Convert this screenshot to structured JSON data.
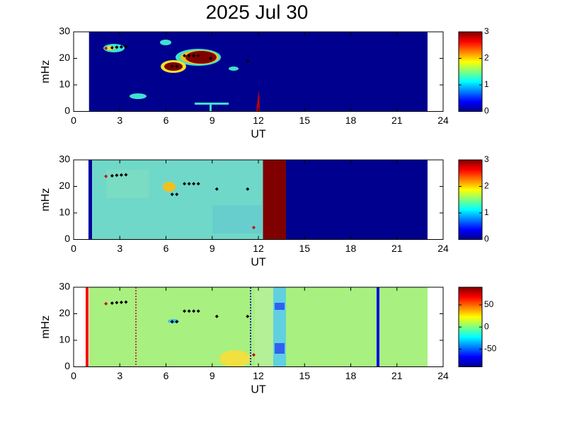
{
  "title": "2025 Jul 30",
  "chart_data": [
    {
      "type": "heatmap",
      "xlabel": "UT",
      "ylabel": "mHz",
      "xlim": [
        0,
        24
      ],
      "ylim": [
        0,
        30
      ],
      "xticks": [
        0,
        3,
        6,
        9,
        12,
        15,
        18,
        21,
        24
      ],
      "yticks": [
        0,
        10,
        20,
        30
      ],
      "clim": [
        0,
        3
      ],
      "cticks": [
        0,
        1,
        2,
        3
      ],
      "series": [
        {
          "color": "#000000",
          "x": [
            2.5,
            2.8,
            3.1,
            3.4,
            6.4,
            6.7,
            7.2,
            7.5,
            7.8,
            8.1,
            8.9,
            11.3
          ],
          "y": [
            24,
            24.2,
            24.3,
            24.4,
            17,
            17,
            21,
            21,
            21,
            21,
            20,
            19
          ]
        },
        {
          "color": "#d00000",
          "x": [
            2.1
          ],
          "y": [
            23.8
          ]
        }
      ]
    },
    {
      "type": "heatmap",
      "xlabel": "UT",
      "ylabel": "mHz",
      "xlim": [
        0,
        24
      ],
      "ylim": [
        0,
        30
      ],
      "xticks": [
        0,
        3,
        6,
        9,
        12,
        15,
        18,
        21,
        24
      ],
      "yticks": [
        0,
        10,
        20,
        30
      ],
      "clim": [
        0,
        3
      ],
      "cticks": [
        0,
        1,
        2,
        3
      ],
      "series": [
        {
          "color": "#000000",
          "x": [
            2.5,
            2.8,
            3.1,
            3.4,
            6.4,
            6.7,
            7.2,
            7.5,
            7.8,
            8.1,
            9.3,
            11.3
          ],
          "y": [
            24,
            24.2,
            24.3,
            24.4,
            17,
            17,
            21,
            21,
            21,
            21,
            19,
            19
          ]
        },
        {
          "color": "#d00000",
          "x": [
            2.1,
            11.7
          ],
          "y": [
            23.8,
            4.5
          ]
        }
      ]
    },
    {
      "type": "heatmap",
      "xlabel": "UT",
      "ylabel": "mHz",
      "xlim": [
        0,
        24
      ],
      "ylim": [
        0,
        30
      ],
      "xticks": [
        0,
        3,
        6,
        9,
        12,
        15,
        18,
        21,
        24
      ],
      "yticks": [
        0,
        10,
        20,
        30
      ],
      "clim": [
        -90,
        90
      ],
      "cticks": [
        -50,
        0,
        50
      ],
      "series": [
        {
          "color": "#000000",
          "x": [
            2.5,
            2.8,
            3.1,
            3.4,
            6.4,
            6.7,
            7.2,
            7.5,
            7.8,
            8.1,
            9.3,
            11.3
          ],
          "y": [
            24,
            24.2,
            24.3,
            24.4,
            17,
            17,
            21,
            21,
            21,
            21,
            19,
            19
          ]
        },
        {
          "color": "#d00000",
          "x": [
            2.1,
            11.7
          ],
          "y": [
            23.8,
            4.5
          ]
        }
      ]
    }
  ]
}
